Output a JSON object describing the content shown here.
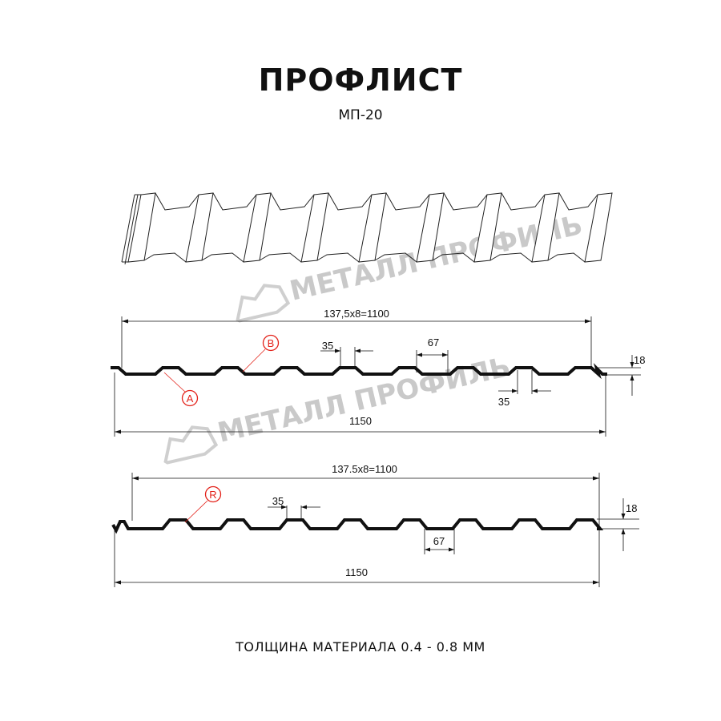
{
  "header": {
    "title": "ПРОФЛИСТ",
    "subtitle": "МП-20"
  },
  "watermark": {
    "text": "МЕТАЛЛ ПРОФИЛЬ",
    "color": "#c9c9c9"
  },
  "profile_a": {
    "overall_pitch_label": "137,5x8=1100",
    "width_label": "1150",
    "top_width_label": "35",
    "bottom_width_label": "35",
    "rib_label": "67",
    "height_label": "18",
    "marker_a": "A",
    "marker_b": "B"
  },
  "profile_r": {
    "overall_pitch_label": "137.5x8=1100",
    "width_label": "1150",
    "top_width_label": "35",
    "rib_label": "67",
    "height_label": "18",
    "marker_r": "R"
  },
  "footer": {
    "thickness": "ТОЛЩИНА МАТЕРИАЛА 0.4 - 0.8 ММ"
  },
  "colors": {
    "marker": "#e32119",
    "line": "#111111"
  }
}
